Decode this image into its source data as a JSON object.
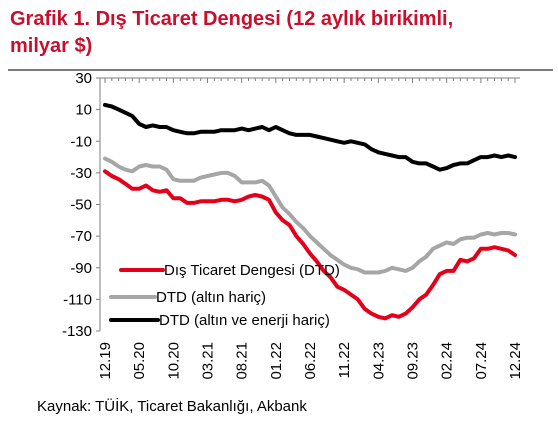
{
  "title": "Grafik 1. Dış Ticaret Dengesi (12 aylık birikimli, milyar $)",
  "source": "Kaynak: TÜİK, Ticaret Bakanlığı, Akbank",
  "chart_data": {
    "type": "line",
    "title": "Grafik 1. Dış Ticaret Dengesi (12 aylık birikimli, milyar $)",
    "ylim": [
      -130,
      30
    ],
    "yticks": [
      30,
      10,
      -10,
      -30,
      -50,
      -70,
      -90,
      -110,
      -130
    ],
    "xticks": [
      "12.19",
      "05.20",
      "10.20",
      "03.21",
      "08.21",
      "01.22",
      "06.22",
      "11.22",
      "04.23",
      "09.23",
      "02.24",
      "07.24",
      "12.24"
    ],
    "x": [
      "12.19",
      "01.20",
      "02.20",
      "03.20",
      "04.20",
      "05.20",
      "06.20",
      "07.20",
      "08.20",
      "09.20",
      "10.20",
      "11.20",
      "12.20",
      "01.21",
      "02.21",
      "03.21",
      "04.21",
      "05.21",
      "06.21",
      "07.21",
      "08.21",
      "09.21",
      "10.21",
      "11.21",
      "12.21",
      "01.22",
      "02.22",
      "03.22",
      "04.22",
      "05.22",
      "06.22",
      "07.22",
      "08.22",
      "09.22",
      "10.22",
      "11.22",
      "12.22",
      "01.23",
      "02.23",
      "03.23",
      "04.23",
      "05.23",
      "06.23",
      "07.23",
      "08.23",
      "09.23",
      "10.23",
      "11.23",
      "12.23",
      "01.24",
      "02.24",
      "03.24",
      "04.24",
      "05.24",
      "06.24",
      "07.24",
      "08.24",
      "09.24",
      "10.24",
      "11.24",
      "12.24"
    ],
    "grid": false,
    "legend_position": "bottom-left",
    "series": [
      {
        "name": "Dış Ticaret Dengesi (DTD)",
        "color": "#e3001b",
        "values": [
          -29,
          -32,
          -34,
          -37,
          -40,
          -40,
          -38,
          -41,
          -42,
          -41,
          -46,
          -46,
          -49,
          -49,
          -48,
          -48,
          -48,
          -47,
          -47,
          -48,
          -47,
          -45,
          -44,
          -45,
          -47,
          -55,
          -60,
          -63,
          -70,
          -75,
          -81,
          -86,
          -92,
          -96,
          -102,
          -104,
          -107,
          -110,
          -116,
          -119,
          -121,
          -122,
          -120,
          -121,
          -119,
          -115,
          -110,
          -107,
          -101,
          -94,
          -92,
          -92,
          -85,
          -86,
          -84,
          -78,
          -78,
          -77,
          -78,
          -79,
          -82
        ]
      },
      {
        "name": "DTD (altın hariç)",
        "color": "#a6a6a6",
        "values": [
          -21,
          -23,
          -26,
          -28,
          -29,
          -26,
          -25,
          -26,
          -26,
          -28,
          -34,
          -35,
          -35,
          -35,
          -33,
          -32,
          -31,
          -30,
          -30,
          -32,
          -36,
          -36,
          -36,
          -35,
          -38,
          -45,
          -52,
          -56,
          -61,
          -65,
          -70,
          -74,
          -78,
          -82,
          -85,
          -88,
          -90,
          -91,
          -93,
          -93,
          -93,
          -92,
          -90,
          -91,
          -92,
          -90,
          -86,
          -83,
          -78,
          -76,
          -74,
          -75,
          -72,
          -71,
          -71,
          -69,
          -68,
          -69,
          -68,
          -68,
          -69
        ]
      },
      {
        "name": "DTD (altın ve enerji hariç)",
        "color": "#000000",
        "values": [
          13,
          12,
          10,
          8,
          6,
          1,
          -1,
          0,
          -1,
          -1,
          -3,
          -4,
          -5,
          -5,
          -4,
          -4,
          -4,
          -3,
          -3,
          -3,
          -2,
          -3,
          -2,
          -1,
          -3,
          -1,
          -3,
          -5,
          -6,
          -6,
          -6,
          -7,
          -8,
          -9,
          -10,
          -11,
          -10,
          -11,
          -12,
          -15,
          -17,
          -18,
          -19,
          -20,
          -20,
          -23,
          -24,
          -24,
          -26,
          -28,
          -27,
          -25,
          -24,
          -24,
          -22,
          -20,
          -20,
          -19,
          -20,
          -19,
          -20
        ]
      }
    ]
  }
}
